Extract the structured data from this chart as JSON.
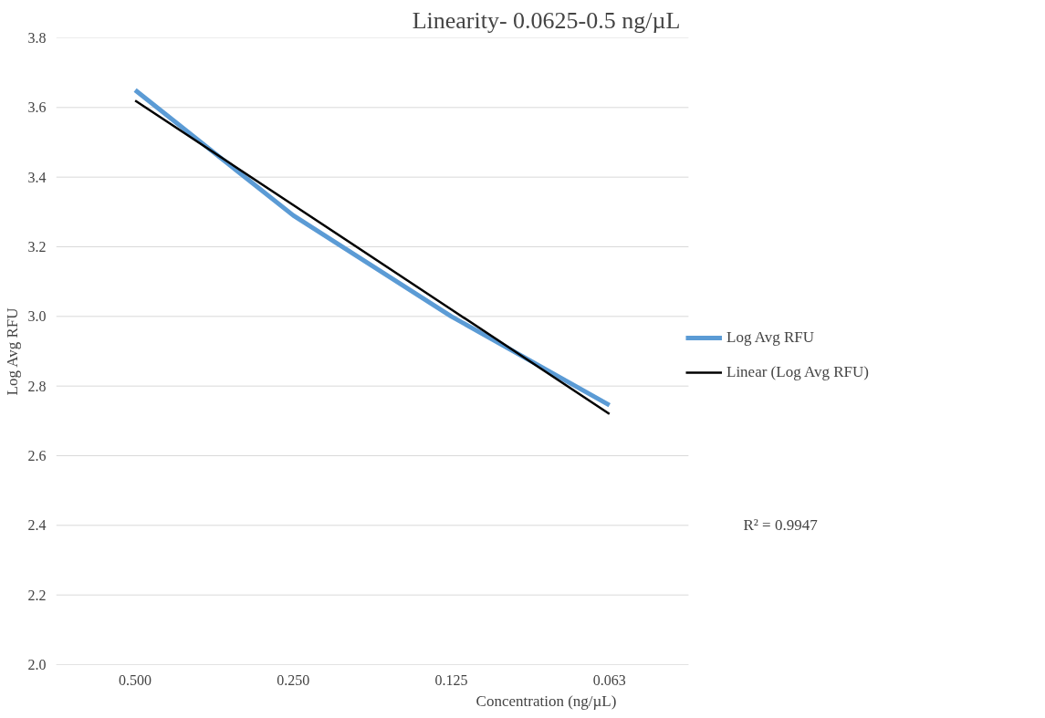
{
  "chart_data": {
    "type": "line",
    "title": "Linearity- 0.0625-0.5 ng/µL",
    "xlabel": "Concentration (ng/µL)",
    "ylabel": "Log Avg RFU",
    "categories": [
      "0.500",
      "0.250",
      "0.125",
      "0.063"
    ],
    "series": [
      {
        "name": "Log Avg RFU",
        "color": "#5b9bd5",
        "values": [
          3.65,
          3.29,
          3.0,
          2.745
        ]
      },
      {
        "name": "Linear (Log Avg RFU)",
        "color": "#000000",
        "values": [
          3.62,
          3.32,
          3.02,
          2.72
        ]
      }
    ],
    "ylim": [
      2.0,
      3.8
    ],
    "yticks": [
      {
        "value": 2.0,
        "label": "2.0"
      },
      {
        "value": 2.2,
        "label": "2.2"
      },
      {
        "value": 2.4,
        "label": "2.4"
      },
      {
        "value": 2.6,
        "label": "2.6"
      },
      {
        "value": 2.8,
        "label": "2.8"
      },
      {
        "value": 3.0,
        "label": "3.0"
      },
      {
        "value": 3.2,
        "label": "3.2"
      },
      {
        "value": 3.4,
        "label": "3.4"
      },
      {
        "value": 3.6,
        "label": "3.6"
      },
      {
        "value": 3.8,
        "label": "3.8"
      }
    ],
    "grid": "y",
    "legend": "right",
    "annotations": [
      "R² = 0.9947"
    ]
  }
}
